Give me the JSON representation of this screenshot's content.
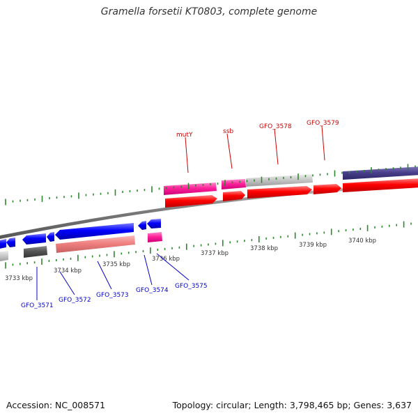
{
  "title": "Gramella forsetii KT0803, complete genome",
  "footer": {
    "accession": "Accession: NC_008571",
    "summary": "Topology: circular; Length: 3,798,465 bp; Genes: 3,637"
  },
  "scale_labels": [
    "3733 kbp",
    "3734 kbp",
    "3735 kbp",
    "3736 kbp",
    "3737 kbp",
    "3738 kbp",
    "3739 kbp",
    "3740 kbp"
  ],
  "gene_labels_top": [
    "mutY",
    "ssb",
    "GFO_3578",
    "GFO_3579"
  ],
  "gene_labels_bottom": [
    "GFO_3571",
    "GFO_3572",
    "GFO_3573",
    "GFO_3574",
    "GFO_3575"
  ],
  "colors": {
    "top_label": "#cc0000",
    "bottom_label": "#0000cc",
    "tick": "#2a8a2a",
    "cds_red": "#ff0000",
    "cds_blue": "#0000ff",
    "pink": "#ff3399",
    "light_gray": "#c8c8c8",
    "dark_gray": "#555555",
    "salmon": "#f08080",
    "purple": "#4a3f8c",
    "backbone": "#888888"
  }
}
